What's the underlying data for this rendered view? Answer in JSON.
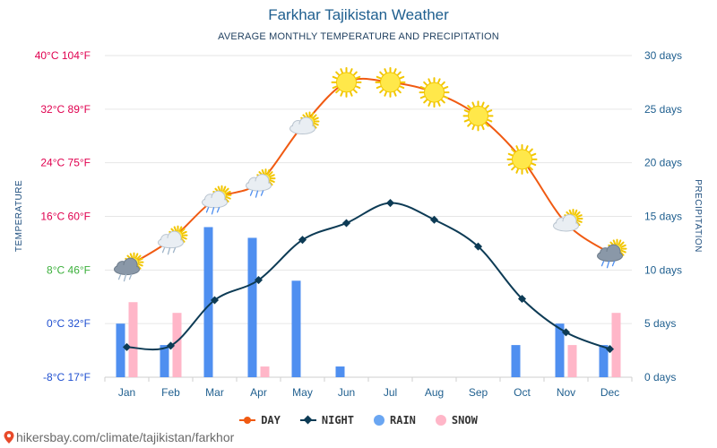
{
  "chart_data": {
    "type": "line",
    "title": "Farkhar Tajikistan Weather",
    "subtitle": "AVERAGE MONTHLY TEMPERATURE AND PRECIPITATION",
    "ylabel_left": "TEMPERATURE",
    "ylabel_right": "PRECIPITATION",
    "categories": [
      "Jan",
      "Feb",
      "Mar",
      "Apr",
      "May",
      "Jun",
      "Jul",
      "Aug",
      "Sep",
      "Oct",
      "Nov",
      "Dec"
    ],
    "ylim_left": [
      -8,
      40
    ],
    "ylim_right": [
      0,
      30
    ],
    "left_ticks": [
      {
        "value": 40,
        "label": "40°C 104°F",
        "color": "#e0004f"
      },
      {
        "value": 32,
        "label": "32°C 89°F",
        "color": "#e0004f"
      },
      {
        "value": 24,
        "label": "24°C 75°F",
        "color": "#e0004f"
      },
      {
        "value": 16,
        "label": "16°C 60°F",
        "color": "#e0004f"
      },
      {
        "value": 8,
        "label": "8°C 46°F",
        "color": "#3cb03c"
      },
      {
        "value": 0,
        "label": "0°C 32°F",
        "color": "#1f4fd0"
      },
      {
        "value": -8,
        "label": "-8°C 17°F",
        "color": "#1f4fd0"
      }
    ],
    "right_ticks": [
      {
        "value": 30,
        "label": "30 days"
      },
      {
        "value": 25,
        "label": "25 days"
      },
      {
        "value": 20,
        "label": "20 days"
      },
      {
        "value": 15,
        "label": "15 days"
      },
      {
        "value": 10,
        "label": "10 days"
      },
      {
        "value": 5,
        "label": "5 days"
      },
      {
        "value": 0,
        "label": "0 days"
      }
    ],
    "series": [
      {
        "name": "DAY",
        "kind": "line",
        "axis": "left",
        "color": "#f05a12",
        "values": [
          8.5,
          12.5,
          18.5,
          21,
          29.5,
          36,
          36,
          34.5,
          31,
          24.5,
          15,
          10.5
        ],
        "icons": [
          "cloud-sun-snow",
          "cloud-sun-snow",
          "cloud-sun-rain",
          "cloud-sun-rain",
          "cloud-sun",
          "sun",
          "sun",
          "sun",
          "sun",
          "sun",
          "cloud-sun",
          "cloud-sun-rain"
        ]
      },
      {
        "name": "NIGHT",
        "kind": "line",
        "axis": "left",
        "color": "#0d3b55",
        "values": [
          -3.5,
          -3.3,
          3.5,
          6.5,
          12.5,
          15,
          18,
          15.5,
          11.5,
          3.7,
          -1.3,
          -3.8
        ]
      },
      {
        "name": "RAIN",
        "kind": "bar",
        "axis": "right",
        "color": "#4f8ff0",
        "values": [
          5,
          3,
          14,
          13,
          9,
          1,
          0,
          0,
          0,
          3,
          5,
          3
        ]
      },
      {
        "name": "SNOW",
        "kind": "bar",
        "axis": "right",
        "color": "#ffb6c8",
        "values": [
          7,
          6,
          0,
          1,
          0,
          0,
          0,
          0,
          0,
          0,
          3,
          6
        ]
      }
    ],
    "grid": true,
    "legend": "bottom-center"
  },
  "legend": {
    "day": "DAY",
    "night": "NIGHT",
    "rain": "RAIN",
    "snow": "SNOW"
  },
  "footer": {
    "url": "hikersbay.com/climate/tajikistan/farkhor"
  }
}
